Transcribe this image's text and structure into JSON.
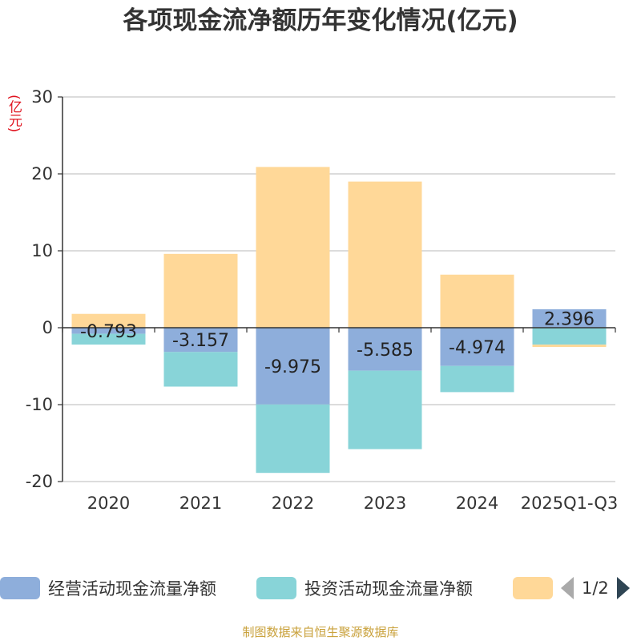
{
  "chart_data": {
    "type": "bar",
    "stacked": true,
    "title": "各项现金流净额历年变化情况(亿元)",
    "ylabel": "(亿元)",
    "ylim": [
      -20,
      30
    ],
    "yticks": [
      -20,
      -10,
      0,
      10,
      20,
      30
    ],
    "categories": [
      "2020",
      "2021",
      "2022",
      "2023",
      "2024",
      "2025Q1-Q3"
    ],
    "series": [
      {
        "name": "经营活动现金流量净额",
        "color": "#8eaedb",
        "values": [
          -0.793,
          -3.157,
          -9.975,
          -5.585,
          -4.974,
          2.396
        ],
        "labels": [
          "-0.793",
          "-3.157",
          "-9.975",
          "-5.585",
          "-4.974",
          "2.396"
        ]
      },
      {
        "name": "投资活动现金流量净额",
        "color": "#88d4d8",
        "values": [
          -1.4,
          -4.5,
          -8.9,
          -10.2,
          -3.4,
          -2.2
        ]
      },
      {
        "name": "",
        "color": "#ffd898",
        "values": [
          1.8,
          9.6,
          20.9,
          19.0,
          6.9,
          -0.3
        ]
      }
    ],
    "legend": {
      "position": "bottom",
      "page": "1/2"
    }
  },
  "source": "制图数据来自恒生聚源数据库"
}
